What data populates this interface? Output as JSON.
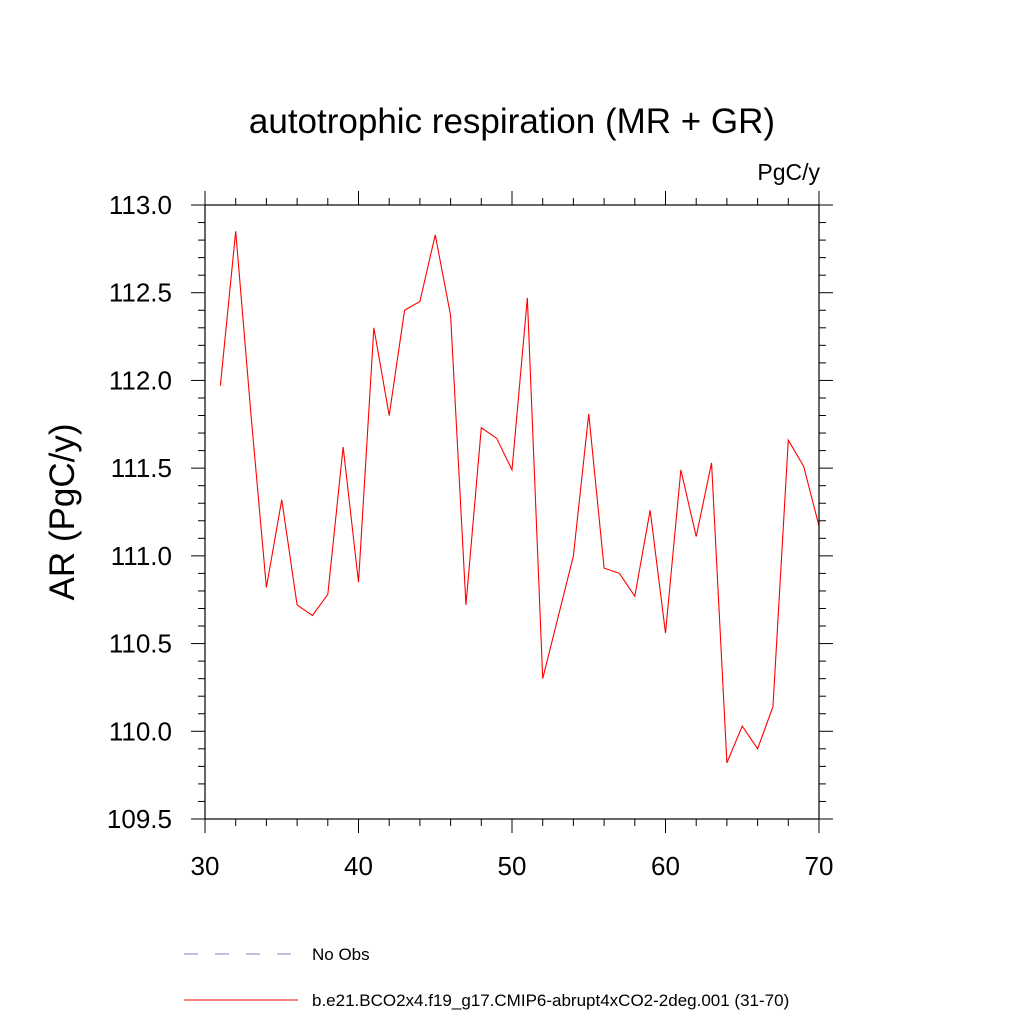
{
  "chart_data": {
    "type": "line",
    "title": "autotrophic respiration (MR + GR)",
    "units_label": "PgC/y",
    "xlabel": "",
    "ylabel": "AR  (PgC/y)",
    "xlim": [
      30,
      70
    ],
    "ylim": [
      109.5,
      113.0
    ],
    "x_ticks": [
      30,
      40,
      50,
      60,
      70
    ],
    "y_ticks": [
      "109.5",
      "110.0",
      "110.5",
      "111.0",
      "111.5",
      "112.0",
      "112.5",
      "113.0"
    ],
    "grid": false,
    "legend_position": "bottom",
    "series": [
      {
        "name": "b.e21.BCO2x4.f19_g17.CMIP6-abrupt4xCO2-2deg.001 (31-70)",
        "color": "#ff0000",
        "style": "solid",
        "x": [
          31,
          32,
          33,
          34,
          35,
          36,
          37,
          38,
          39,
          40,
          41,
          42,
          43,
          44,
          45,
          46,
          47,
          48,
          49,
          50,
          51,
          52,
          53,
          54,
          55,
          56,
          57,
          58,
          59,
          60,
          61,
          62,
          63,
          64,
          65,
          66,
          67,
          68,
          69,
          70
        ],
        "y": [
          111.97,
          112.85,
          111.8,
          110.82,
          111.32,
          110.72,
          110.66,
          110.78,
          111.62,
          110.85,
          112.3,
          111.8,
          112.4,
          112.45,
          112.83,
          112.37,
          110.72,
          111.73,
          111.67,
          111.49,
          112.47,
          110.3,
          110.65,
          111.0,
          111.81,
          110.93,
          110.9,
          110.77,
          111.26,
          110.56,
          111.49,
          111.11,
          111.53,
          109.82,
          110.03,
          109.9,
          110.14,
          111.66,
          111.51,
          111.17
        ]
      }
    ],
    "legend": [
      {
        "label": "No Obs",
        "color": "#8080c0",
        "style": "dashed"
      },
      {
        "label": "b.e21.BCO2x4.f19_g17.CMIP6-abrupt4xCO2-2deg.001 (31-70)",
        "color": "#ff0000",
        "style": "solid"
      }
    ]
  }
}
